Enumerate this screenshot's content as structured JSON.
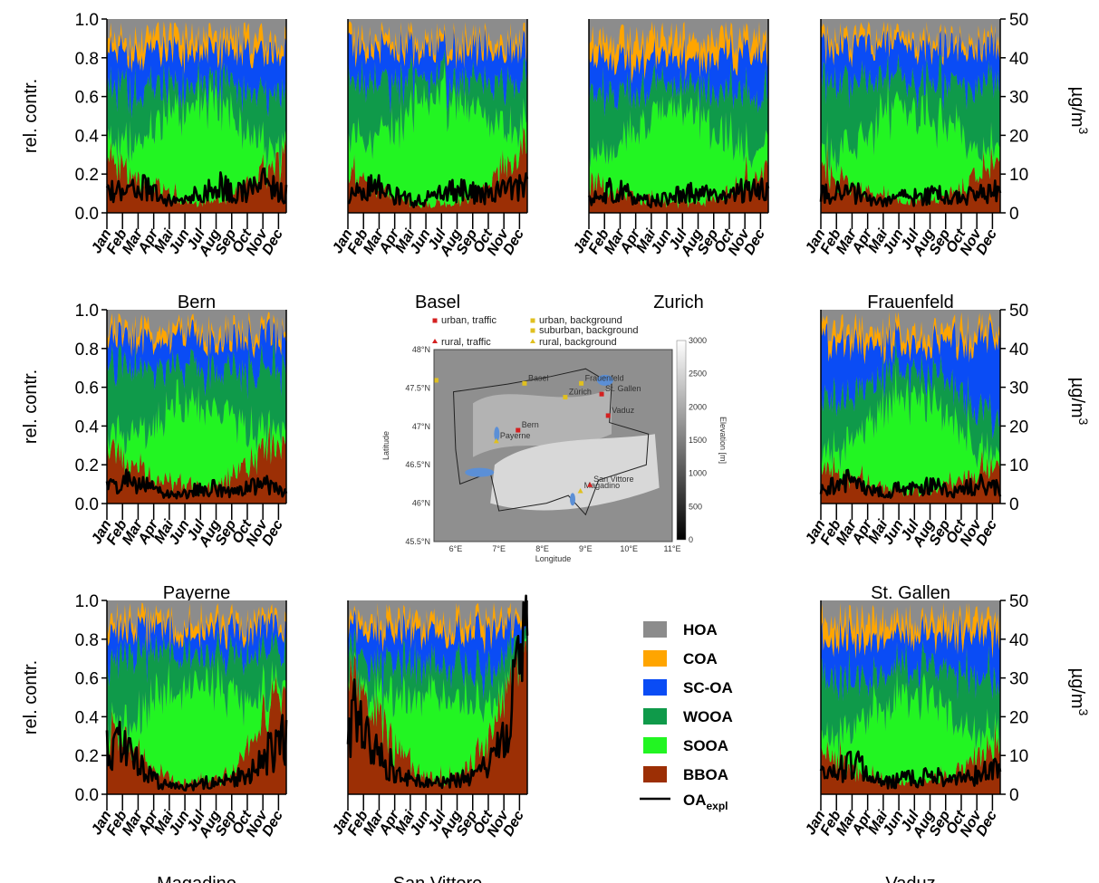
{
  "chart_data": {
    "type": "area",
    "ylabel_left": "rel. contr.",
    "ylabel_right_base": "µg/m",
    "ylabel_right_exp": "3",
    "ylim_left": [
      0,
      1.0
    ],
    "ylim_right": [
      0,
      50
    ],
    "left_ticks": [
      "0.0",
      "0.2",
      "0.4",
      "0.6",
      "0.8",
      "1.0"
    ],
    "right_ticks": [
      "0",
      "10",
      "20",
      "30",
      "40",
      "50"
    ],
    "months": [
      "Jan",
      "Feb",
      "Mar",
      "Apr",
      "Mai",
      "Jun",
      "Jul",
      "Aug",
      "Sep",
      "Oct",
      "Nov",
      "Dec"
    ],
    "components": [
      {
        "name": "HOA",
        "color": "#8c8c8c"
      },
      {
        "name": "COA",
        "color": "#ffa500"
      },
      {
        "name": "SC-OA",
        "color": "#0a4cf5"
      },
      {
        "name": "WOOA",
        "color": "#0f9a4a"
      },
      {
        "name": "SOOA",
        "color": "#22f522"
      },
      {
        "name": "BBOA",
        "color": "#9c2f05"
      }
    ],
    "line": {
      "name_base": "OA",
      "name_sub": "expl",
      "color": "#000000"
    },
    "stations": [
      {
        "name": "Bern",
        "monthly": {
          "BBOA": [
            0.28,
            0.22,
            0.15,
            0.12,
            0.08,
            0.06,
            0.06,
            0.07,
            0.1,
            0.15,
            0.22,
            0.3
          ],
          "SOOA": [
            0.1,
            0.15,
            0.25,
            0.35,
            0.45,
            0.55,
            0.55,
            0.5,
            0.4,
            0.25,
            0.12,
            0.08
          ],
          "WOOA": [
            0.3,
            0.3,
            0.25,
            0.2,
            0.15,
            0.1,
            0.1,
            0.12,
            0.18,
            0.25,
            0.3,
            0.3
          ],
          "SCOA": [
            0.2,
            0.2,
            0.2,
            0.18,
            0.17,
            0.16,
            0.16,
            0.18,
            0.18,
            0.22,
            0.22,
            0.22
          ],
          "COA": [
            0.06,
            0.07,
            0.08,
            0.08,
            0.08,
            0.08,
            0.08,
            0.08,
            0.08,
            0.07,
            0.06,
            0.05
          ]
        },
        "oa": [
          6,
          6,
          7,
          4,
          3,
          4,
          5,
          7,
          5,
          6,
          8,
          5
        ]
      },
      {
        "name": "Basel",
        "monthly": {
          "BBOA": [
            0.2,
            0.15,
            0.1,
            0.07,
            0.05,
            0.05,
            0.05,
            0.06,
            0.1,
            0.15,
            0.25,
            0.3
          ],
          "SOOA": [
            0.2,
            0.25,
            0.35,
            0.45,
            0.55,
            0.6,
            0.6,
            0.55,
            0.45,
            0.35,
            0.2,
            0.15
          ],
          "WOOA": [
            0.3,
            0.3,
            0.25,
            0.2,
            0.15,
            0.1,
            0.1,
            0.12,
            0.18,
            0.22,
            0.25,
            0.25
          ],
          "SCOA": [
            0.18,
            0.18,
            0.18,
            0.16,
            0.15,
            0.15,
            0.15,
            0.16,
            0.17,
            0.18,
            0.2,
            0.2
          ],
          "COA": [
            0.05,
            0.05,
            0.05,
            0.05,
            0.05,
            0.05,
            0.05,
            0.05,
            0.05,
            0.05,
            0.05,
            0.05
          ]
        },
        "oa": [
          5,
          7,
          6,
          4,
          3,
          4,
          5,
          6,
          5,
          5,
          6,
          7
        ]
      },
      {
        "name": "Zurich",
        "monthly": {
          "BBOA": [
            0.15,
            0.12,
            0.1,
            0.08,
            0.06,
            0.05,
            0.05,
            0.06,
            0.08,
            0.12,
            0.18,
            0.22
          ],
          "SOOA": [
            0.15,
            0.2,
            0.3,
            0.4,
            0.5,
            0.55,
            0.55,
            0.5,
            0.4,
            0.3,
            0.18,
            0.12
          ],
          "WOOA": [
            0.3,
            0.3,
            0.25,
            0.2,
            0.15,
            0.12,
            0.12,
            0.15,
            0.2,
            0.25,
            0.3,
            0.3
          ],
          "SCOA": [
            0.2,
            0.2,
            0.18,
            0.16,
            0.15,
            0.15,
            0.15,
            0.15,
            0.16,
            0.18,
            0.2,
            0.22
          ],
          "COA": [
            0.1,
            0.1,
            0.1,
            0.1,
            0.1,
            0.1,
            0.1,
            0.1,
            0.1,
            0.1,
            0.09,
            0.08
          ]
        },
        "oa": [
          4,
          6,
          5,
          3,
          3,
          4,
          5,
          5,
          4,
          5,
          6,
          6
        ]
      },
      {
        "name": "Frauenfeld",
        "monthly": {
          "BBOA": [
            0.2,
            0.16,
            0.12,
            0.1,
            0.08,
            0.06,
            0.06,
            0.07,
            0.1,
            0.14,
            0.2,
            0.25
          ],
          "SOOA": [
            0.1,
            0.15,
            0.25,
            0.35,
            0.45,
            0.5,
            0.5,
            0.45,
            0.35,
            0.25,
            0.12,
            0.08
          ],
          "WOOA": [
            0.35,
            0.33,
            0.3,
            0.25,
            0.2,
            0.15,
            0.15,
            0.18,
            0.22,
            0.28,
            0.35,
            0.35
          ],
          "SCOA": [
            0.2,
            0.22,
            0.2,
            0.18,
            0.17,
            0.17,
            0.17,
            0.18,
            0.2,
            0.2,
            0.2,
            0.2
          ],
          "COA": [
            0.05,
            0.05,
            0.04,
            0.04,
            0.04,
            0.04,
            0.04,
            0.04,
            0.04,
            0.04,
            0.04,
            0.04
          ]
        },
        "oa": [
          5,
          6,
          5,
          3,
          3,
          4,
          4,
          5,
          4,
          4,
          5,
          6
        ]
      },
      {
        "name": "Payerne",
        "monthly": {
          "BBOA": [
            0.25,
            0.2,
            0.16,
            0.12,
            0.1,
            0.08,
            0.08,
            0.1,
            0.14,
            0.2,
            0.28,
            0.32
          ],
          "SOOA": [
            0.1,
            0.15,
            0.22,
            0.32,
            0.4,
            0.45,
            0.45,
            0.4,
            0.3,
            0.18,
            0.1,
            0.08
          ],
          "WOOA": [
            0.35,
            0.35,
            0.3,
            0.25,
            0.2,
            0.18,
            0.18,
            0.2,
            0.25,
            0.3,
            0.3,
            0.3
          ],
          "SCOA": [
            0.15,
            0.15,
            0.15,
            0.14,
            0.14,
            0.14,
            0.14,
            0.14,
            0.15,
            0.16,
            0.16,
            0.16
          ],
          "COA": [
            0.05,
            0.05,
            0.05,
            0.05,
            0.04,
            0.04,
            0.04,
            0.04,
            0.04,
            0.04,
            0.04,
            0.04
          ]
        },
        "oa": [
          5,
          6,
          5,
          3,
          2,
          3,
          4,
          4,
          3,
          4,
          5,
          4
        ]
      },
      {
        "name": "St. Gallen",
        "monthly": {
          "BBOA": [
            0.18,
            0.14,
            0.12,
            0.1,
            0.08,
            0.07,
            0.07,
            0.08,
            0.1,
            0.14,
            0.18,
            0.22
          ],
          "SOOA": [
            0.1,
            0.15,
            0.25,
            0.35,
            0.45,
            0.5,
            0.5,
            0.45,
            0.35,
            0.22,
            0.12,
            0.08
          ],
          "WOOA": [
            0.25,
            0.25,
            0.22,
            0.2,
            0.17,
            0.15,
            0.15,
            0.17,
            0.18,
            0.2,
            0.2,
            0.2
          ],
          "SCOA": [
            0.3,
            0.3,
            0.25,
            0.2,
            0.15,
            0.14,
            0.14,
            0.16,
            0.22,
            0.3,
            0.38,
            0.4
          ],
          "COA": [
            0.07,
            0.07,
            0.07,
            0.07,
            0.06,
            0.06,
            0.06,
            0.06,
            0.06,
            0.06,
            0.05,
            0.05
          ]
        },
        "oa": [
          4,
          6,
          5,
          3,
          3,
          4,
          4,
          5,
          3,
          4,
          5,
          4
        ]
      },
      {
        "name": "Magadino",
        "monthly": {
          "BBOA": [
            0.3,
            0.25,
            0.18,
            0.12,
            0.08,
            0.06,
            0.06,
            0.08,
            0.12,
            0.25,
            0.45,
            0.55
          ],
          "SOOA": [
            0.05,
            0.1,
            0.25,
            0.4,
            0.5,
            0.55,
            0.55,
            0.5,
            0.4,
            0.25,
            0.1,
            0.05
          ],
          "WOOA": [
            0.35,
            0.35,
            0.3,
            0.25,
            0.2,
            0.15,
            0.15,
            0.18,
            0.22,
            0.25,
            0.22,
            0.2
          ],
          "SCOA": [
            0.15,
            0.15,
            0.14,
            0.12,
            0.12,
            0.12,
            0.12,
            0.12,
            0.14,
            0.15,
            0.13,
            0.12
          ],
          "COA": [
            0.05,
            0.05,
            0.05,
            0.05,
            0.05,
            0.05,
            0.05,
            0.05,
            0.05,
            0.05,
            0.04,
            0.04
          ]
        },
        "oa": [
          14,
          10,
          6,
          3,
          2,
          2,
          3,
          3,
          4,
          6,
          9,
          14
        ]
      },
      {
        "name": "San Vittore",
        "monthly": {
          "BBOA": [
            0.65,
            0.5,
            0.35,
            0.2,
            0.12,
            0.08,
            0.08,
            0.1,
            0.15,
            0.3,
            0.55,
            0.75
          ],
          "SOOA": [
            0.02,
            0.05,
            0.15,
            0.3,
            0.4,
            0.45,
            0.45,
            0.4,
            0.3,
            0.15,
            0.05,
            0.02
          ],
          "WOOA": [
            0.12,
            0.15,
            0.18,
            0.18,
            0.18,
            0.15,
            0.15,
            0.18,
            0.2,
            0.2,
            0.15,
            0.1
          ],
          "SCOA": [
            0.12,
            0.15,
            0.17,
            0.17,
            0.16,
            0.17,
            0.17,
            0.17,
            0.18,
            0.2,
            0.15,
            0.08
          ],
          "COA": [
            0.04,
            0.05,
            0.06,
            0.06,
            0.06,
            0.06,
            0.06,
            0.06,
            0.06,
            0.06,
            0.05,
            0.03
          ]
        },
        "oa": [
          20,
          13,
          9,
          5,
          4,
          3,
          3,
          4,
          5,
          8,
          15,
          35
        ]
      },
      {
        "name": "Vaduz",
        "monthly": {
          "BBOA": [
            0.2,
            0.16,
            0.12,
            0.1,
            0.08,
            0.07,
            0.07,
            0.08,
            0.1,
            0.14,
            0.2,
            0.25
          ],
          "SOOA": [
            0.1,
            0.15,
            0.25,
            0.35,
            0.45,
            0.5,
            0.5,
            0.45,
            0.35,
            0.22,
            0.12,
            0.08
          ],
          "WOOA": [
            0.3,
            0.28,
            0.25,
            0.2,
            0.18,
            0.15,
            0.15,
            0.18,
            0.22,
            0.27,
            0.3,
            0.3
          ],
          "SCOA": [
            0.2,
            0.22,
            0.2,
            0.18,
            0.17,
            0.17,
            0.17,
            0.18,
            0.2,
            0.22,
            0.22,
            0.22
          ],
          "COA": [
            0.1,
            0.1,
            0.1,
            0.09,
            0.08,
            0.07,
            0.07,
            0.07,
            0.07,
            0.08,
            0.08,
            0.08
          ]
        },
        "oa": [
          5,
          7,
          8,
          4,
          3,
          4,
          4,
          5,
          4,
          4,
          5,
          6
        ]
      }
    ]
  },
  "map": {
    "legend": [
      "urban, traffic",
      "urban, background",
      "suburban, background",
      "rural, traffic",
      "rural, background"
    ],
    "lat_ticks": [
      "48°N",
      "47.5°N",
      "47°N",
      "46.5°N",
      "46°N",
      "45.5°N"
    ],
    "lon_ticks": [
      "6°E",
      "7°E",
      "8°E",
      "9°E",
      "10°E",
      "11°E"
    ],
    "xlabel": "Longitude",
    "ylabel": "Latitude",
    "colorbar_label": "Elevation [m]",
    "colorbar_ticks": [
      "3000",
      "2500",
      "2000",
      "1500",
      "1000",
      "500",
      "0"
    ],
    "sites": [
      {
        "name": "Basel",
        "lon": 7.59,
        "lat": 47.56,
        "type": "urban, background"
      },
      {
        "name": "Frauenfeld",
        "lon": 8.9,
        "lat": 47.56,
        "type": "urban, background"
      },
      {
        "name": "Zürich",
        "lon": 8.53,
        "lat": 47.38,
        "type": "urban, background"
      },
      {
        "name": "St. Gallen",
        "lon": 9.37,
        "lat": 47.42,
        "type": "urban, traffic"
      },
      {
        "name": "Vaduz",
        "lon": 9.52,
        "lat": 47.14,
        "type": "urban, traffic"
      },
      {
        "name": "Bern",
        "lon": 7.44,
        "lat": 46.95,
        "type": "urban, traffic"
      },
      {
        "name": "Payerne",
        "lon": 6.94,
        "lat": 46.81,
        "type": "rural, background"
      },
      {
        "name": "Magadino",
        "lon": 8.88,
        "lat": 46.16,
        "type": "rural, background"
      },
      {
        "name": "San Vittore",
        "lon": 9.1,
        "lat": 46.24,
        "type": "rural, traffic"
      },
      {
        "name": "",
        "lon": 5.55,
        "lat": 47.6,
        "type": "urban, background"
      }
    ]
  }
}
